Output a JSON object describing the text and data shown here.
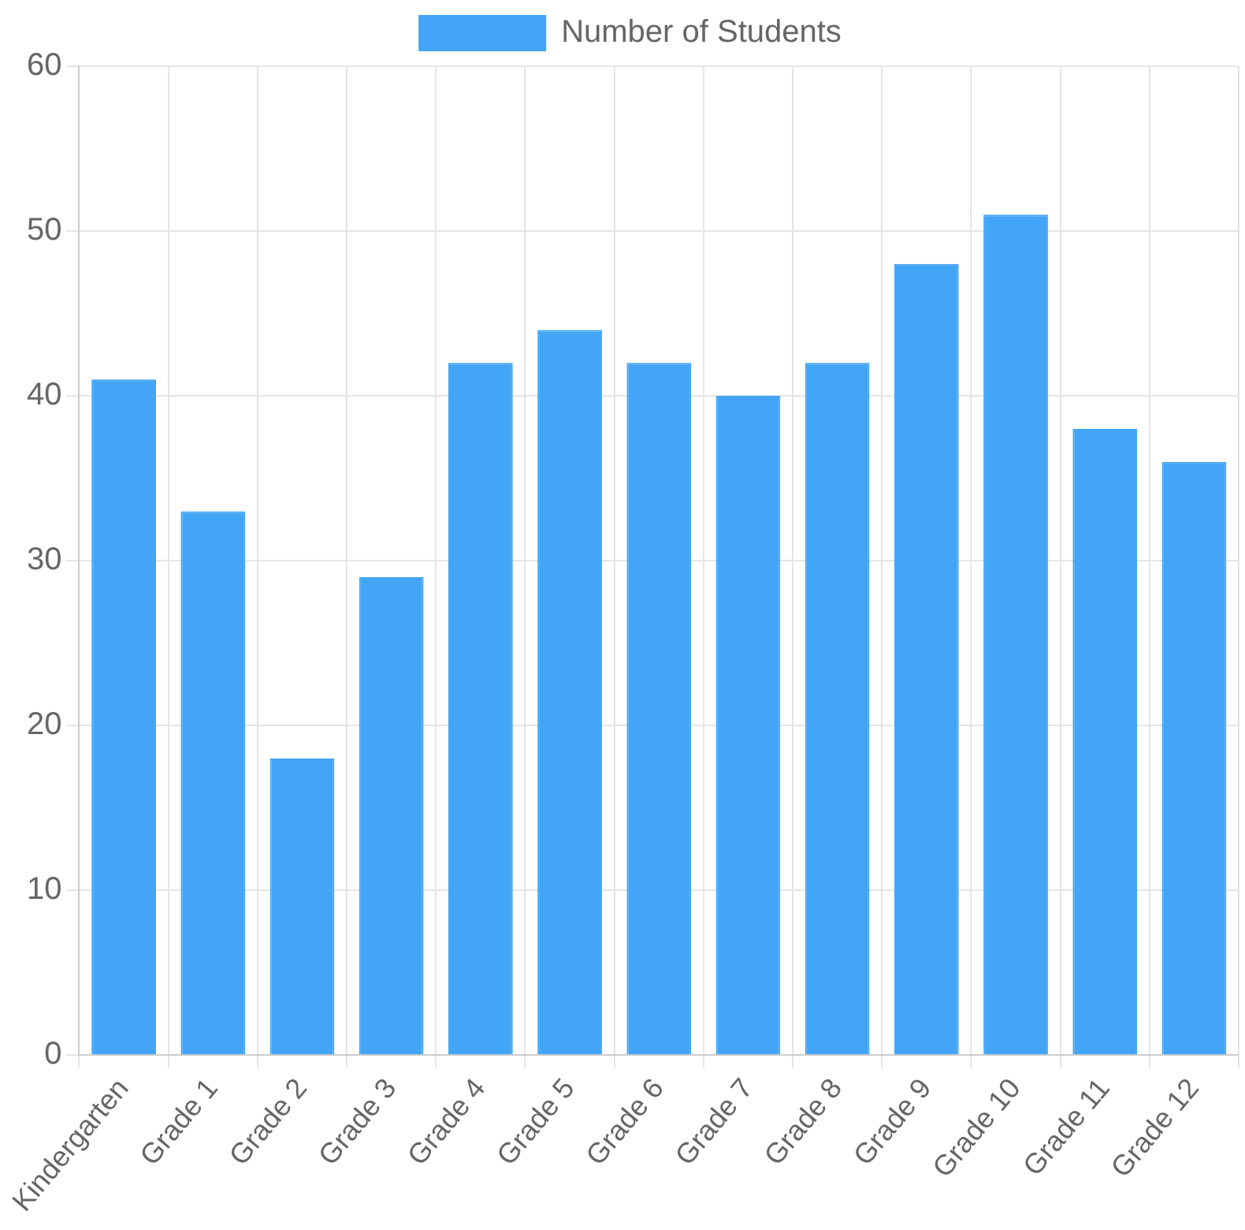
{
  "chart_data": {
    "type": "bar",
    "categories": [
      "Kindergarten",
      "Grade 1",
      "Grade 2",
      "Grade 3",
      "Grade 4",
      "Grade 5",
      "Grade 6",
      "Grade 7",
      "Grade 8",
      "Grade 9",
      "Grade 10",
      "Grade 11",
      "Grade 12"
    ],
    "series": [
      {
        "name": "Number of Students",
        "color": "#42a5f5",
        "values": [
          41,
          33,
          18,
          29,
          42,
          44,
          42,
          40,
          42,
          48,
          51,
          38,
          36
        ]
      }
    ],
    "ylim": [
      0,
      60
    ],
    "yticks": [
      0,
      10,
      20,
      30,
      40,
      50,
      60
    ],
    "grid": true,
    "legend": "top"
  }
}
